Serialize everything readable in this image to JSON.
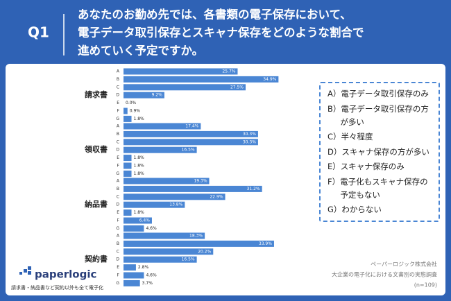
{
  "header": {
    "question_number": "Q1",
    "question_lines": [
      "あなたのお勤め先では、各書類の電子保存において、",
      "電子データ取引保存とスキャナ保存をどのような割合で",
      "進めていく予定ですか。"
    ]
  },
  "chart_data": {
    "type": "bar",
    "orientation": "horizontal",
    "color": "#4a86d4",
    "xlim": [
      0,
      35
    ],
    "categories": [
      "A",
      "B",
      "C",
      "D",
      "E",
      "F",
      "G"
    ],
    "groups": [
      {
        "name": "請求書",
        "values": [
          25.7,
          34.9,
          27.5,
          9.2,
          0.0,
          0.9,
          1.8
        ],
        "value_labels": [
          "25.7%",
          "34.9%",
          "27.5%",
          "9.2%",
          "0.0%",
          "0.9%",
          "1.8%"
        ]
      },
      {
        "name": "領収書",
        "values": [
          17.4,
          30.3,
          30.3,
          16.5,
          1.8,
          1.8,
          1.8
        ],
        "value_labels": [
          "17.4%",
          "30.3%",
          "30.3%",
          "16.5%",
          "1.8%",
          "1.8%",
          "1.8%"
        ]
      },
      {
        "name": "納品書",
        "values": [
          19.3,
          31.2,
          22.9,
          13.8,
          1.8,
          6.4,
          4.6
        ],
        "value_labels": [
          "19.3%",
          "31.2%",
          "22.9%",
          "13.8%",
          "1.8%",
          "6.4%",
          "4.6%"
        ]
      },
      {
        "name": "契約書",
        "values": [
          18.3,
          33.9,
          20.2,
          16.5,
          2.8,
          4.6,
          3.7
        ],
        "value_labels": [
          "18.3%",
          "33.9%",
          "20.2%",
          "16.5%",
          "2.8%",
          "4.6%",
          "3.7%"
        ]
      }
    ],
    "legend": [
      "A）電子データ取引保存のみ",
      "B）電子データ取引保存の方が多い",
      "C）半々程度",
      "D）スキャナ保存の方が多い",
      "E）スキャナ保存のみ",
      "F）電子化もスキャナ保存の予定もない",
      "G）わからない"
    ]
  },
  "footer": {
    "logo": "paperlogic",
    "tagline": "請求書・納品書など契約以外も全て電子化",
    "source_lines": [
      "ペーパーロジック株式会社",
      "大企業の電子化における文書別の実態調査",
      "(n=109)"
    ]
  }
}
